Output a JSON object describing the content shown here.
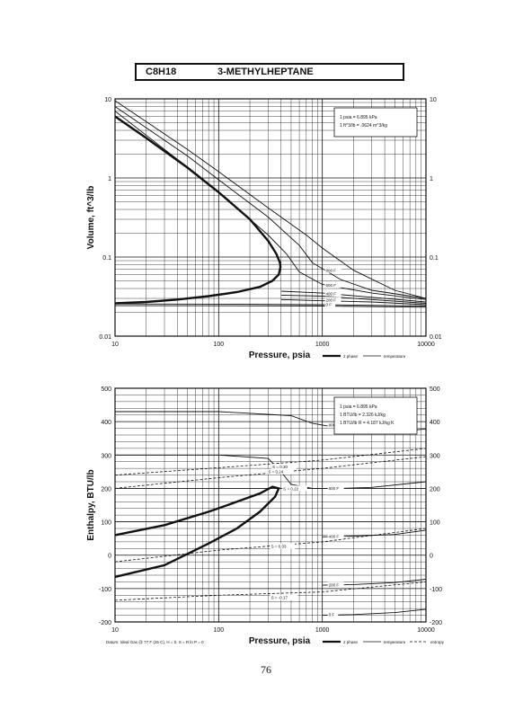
{
  "header": {
    "formula": "C8H18",
    "name": "3-METHYLHEPTANE"
  },
  "page_number": "76",
  "colors": {
    "ink": "#111111",
    "paper": "#ffffff"
  },
  "chart_data": [
    {
      "type": "line",
      "xscale": "log",
      "yscale": "log",
      "xlim": [
        10,
        10000
      ],
      "ylim": [
        0.01,
        10
      ],
      "xlabel": "Pressure, psia",
      "ylabel": "Volume, ft^3/lb",
      "x_ticks": [
        "10",
        "100",
        "1000",
        "10000"
      ],
      "y_ticks": [
        "0.01",
        "0.1",
        "1",
        "10"
      ],
      "grid": true,
      "notes": [
        "1 psia = 6.895 kPa",
        "1 ft^3/lb = .0624 m^3/kg"
      ],
      "legend_items": [
        "2 phase",
        "temperature"
      ],
      "series": [
        {
          "kind": "2phase",
          "x": [
            10,
            20,
            50,
            100,
            200,
            300,
            360,
            390,
            395,
            380,
            330,
            250,
            150,
            80,
            40,
            20,
            10
          ],
          "y": [
            6.0,
            3.2,
            1.35,
            0.66,
            0.3,
            0.16,
            0.11,
            0.085,
            0.075,
            0.06,
            0.05,
            0.042,
            0.036,
            0.032,
            0.029,
            0.027,
            0.026
          ]
        },
        {
          "kind": "temp",
          "label": "800 F",
          "x": [
            10,
            50,
            100,
            300,
            700,
            1000,
            2000,
            5000,
            10000
          ],
          "y": [
            9.5,
            2.3,
            1.2,
            0.42,
            0.19,
            0.13,
            0.068,
            0.038,
            0.03
          ]
        },
        {
          "kind": "temp",
          "label": "",
          "x": [
            10,
            50,
            100,
            300,
            600,
            800,
            1500,
            3000,
            10000
          ],
          "y": [
            8.0,
            1.9,
            0.95,
            0.32,
            0.14,
            0.085,
            0.052,
            0.038,
            0.03
          ]
        },
        {
          "kind": "temp",
          "label": "",
          "x": [
            10,
            30,
            60,
            120,
            200,
            300,
            450,
            600,
            1000,
            3000,
            10000
          ],
          "y": [
            7.0,
            2.3,
            1.15,
            0.55,
            0.3,
            0.19,
            0.11,
            0.065,
            0.045,
            0.035,
            0.029
          ]
        },
        {
          "kind": "temp",
          "label": "",
          "x": [
            400,
            1000,
            3000,
            10000
          ],
          "y": [
            0.037,
            0.035,
            0.031,
            0.027
          ]
        },
        {
          "kind": "temp",
          "label": "",
          "x": [
            400,
            1000,
            3000,
            10000
          ],
          "y": [
            0.033,
            0.032,
            0.029,
            0.026
          ]
        },
        {
          "kind": "temp",
          "label": "",
          "x": [
            400,
            1000,
            3000,
            10000
          ],
          "y": [
            0.029,
            0.028,
            0.027,
            0.025
          ]
        },
        {
          "kind": "temp",
          "label": "",
          "x": [
            10,
            100,
            1000,
            10000
          ],
          "y": [
            0.0255,
            0.0254,
            0.025,
            0.024
          ]
        },
        {
          "kind": "temp",
          "label": "",
          "x": [
            10,
            100,
            1000,
            10000
          ],
          "y": [
            0.0243,
            0.0242,
            0.024,
            0.0232
          ]
        }
      ],
      "curve_labels": [
        {
          "text": "800 F",
          "x": 1080,
          "y": 0.065
        },
        {
          "text": "600 F",
          "x": 1080,
          "y": 0.042
        },
        {
          "text": "400 F",
          "x": 1080,
          "y": 0.033
        },
        {
          "text": "200 F",
          "x": 1080,
          "y": 0.0275
        },
        {
          "text": "0 F",
          "x": 1080,
          "y": 0.024
        }
      ]
    },
    {
      "type": "line",
      "xscale": "log",
      "yscale": "linear",
      "xlim": [
        10,
        10000
      ],
      "ylim": [
        -200,
        500
      ],
      "xlabel": "Pressure, psia",
      "ylabel": "Enthalpy, BTU/lb",
      "x_ticks": [
        "10",
        "100",
        "1000",
        "10000"
      ],
      "y_ticks": [
        "-200",
        "-100",
        "0",
        "100",
        "200",
        "300",
        "400",
        "500"
      ],
      "grid": true,
      "notes": [
        "1 psia = 6.895 kPa",
        "1 BTU/lb = 2.326 kJ/kg",
        "1 BTU/lb R = 4.187 kJ/kg K"
      ],
      "legend_items": [
        "2 phase",
        "temperature",
        "entropy"
      ],
      "footnote": "Datum: Ideal Gas @ 77 F (25 C), H = 0, S = R ln P = 0",
      "series": [
        {
          "kind": "2phase",
          "x": [
            10,
            30,
            80,
            150,
            250,
            330,
            380,
            350,
            250,
            150,
            80,
            30,
            10
          ],
          "y": [
            60,
            90,
            130,
            160,
            185,
            205,
            200,
            175,
            130,
            80,
            35,
            -30,
            -65
          ]
        },
        {
          "kind": "temp",
          "label": "800 F",
          "x": [
            10,
            100,
            500,
            800,
            1500,
            3000,
            6000,
            10000
          ],
          "y": [
            430,
            430,
            418,
            395,
            380,
            372,
            372,
            378
          ]
        },
        {
          "kind": "temp",
          "label": "600 F",
          "x": [
            10,
            100,
            300,
            400,
            500,
            800,
            1500,
            3000,
            10000
          ],
          "y": [
            300,
            300,
            290,
            250,
            212,
            200,
            200,
            203,
            220
          ]
        },
        {
          "kind": "temp",
          "label": "400 F",
          "x": [
            1000,
            2000,
            5000,
            10000
          ],
          "y": [
            55,
            57,
            62,
            75
          ]
        },
        {
          "kind": "temp",
          "label": "200 F",
          "x": [
            1000,
            2000,
            5000,
            10000
          ],
          "y": [
            -90,
            -88,
            -82,
            -72
          ]
        },
        {
          "kind": "temp",
          "label": "0 F",
          "x": [
            1000,
            2000,
            5000,
            10000
          ],
          "y": [
            -180,
            -178,
            -172,
            -162
          ]
        },
        {
          "kind": "entropy",
          "label": "S = 0.30",
          "x": [
            10,
            100,
            1000,
            10000
          ],
          "y": [
            240,
            262,
            285,
            320
          ]
        },
        {
          "kind": "entropy",
          "label": "S = 0.24",
          "x": [
            10,
            100,
            1000,
            10000
          ],
          "y": [
            200,
            232,
            260,
            295
          ]
        },
        {
          "kind": "entropy",
          "label": "S = 0.03",
          "x": [
            10,
            100,
            1000,
            10000
          ],
          "y": [
            -20,
            15,
            40,
            80
          ]
        },
        {
          "kind": "entropy",
          "label": "S = -0.17",
          "x": [
            10,
            100,
            1000,
            10000
          ],
          "y": [
            -135,
            -120,
            -110,
            -80
          ]
        }
      ],
      "curve_labels": [
        {
          "text": "800 F",
          "x": 1150,
          "y": 385
        },
        {
          "text": "600 F",
          "x": 1150,
          "y": 196
        },
        {
          "text": "400 F",
          "x": 1150,
          "y": 52
        },
        {
          "text": "200 F",
          "x": 1150,
          "y": -93
        },
        {
          "text": "0 F",
          "x": 1150,
          "y": -183
        },
        {
          "text": "S = 0.30",
          "x": 330,
          "y": 260
        },
        {
          "text": "S = 0.24",
          "x": 300,
          "y": 245
        },
        {
          "text": "S = 0.22",
          "x": 420,
          "y": 195
        },
        {
          "text": "S = 0.03",
          "x": 320,
          "y": 22
        },
        {
          "text": "S = -0.17",
          "x": 320,
          "y": -132
        }
      ]
    }
  ]
}
